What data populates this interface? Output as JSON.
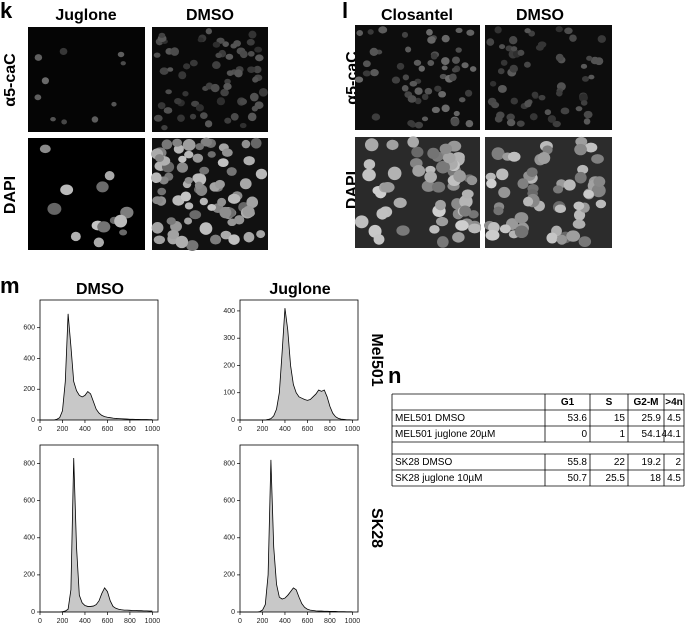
{
  "panels": {
    "k": {
      "label": "k",
      "columns": [
        "Juglone",
        "DMSO"
      ],
      "rows": [
        "α5-caC",
        "DAPI"
      ]
    },
    "l": {
      "label": "l",
      "columns": [
        "Closantel",
        "DMSO"
      ],
      "rows": [
        "α5-caC",
        "DAPI"
      ]
    },
    "m": {
      "label": "m",
      "columns": [
        "DMSO",
        "Juglone"
      ],
      "rows": [
        "Mel501",
        "SK28"
      ]
    },
    "n": {
      "label": "n",
      "table": {
        "header": [
          "G1",
          "S",
          "G2-M",
          ">4n"
        ],
        "groups": [
          [
            {
              "name": "MEL501 DMSO",
              "values": [
                53.6,
                15,
                25.9,
                4.5
              ]
            },
            {
              "name": "MEL501 juglone 20µM",
              "values": [
                0,
                1,
                54.1,
                44.1
              ]
            }
          ],
          [
            {
              "name": "SK28 DMSO",
              "values": [
                55.8,
                22,
                19.2,
                2
              ]
            },
            {
              "name": "SK28 juglone 10µM",
              "values": [
                50.7,
                25.5,
                18,
                4.5
              ]
            }
          ]
        ]
      }
    }
  },
  "chart_data": [
    {
      "type": "area",
      "color": "#c8c8c8",
      "x": [
        0,
        25,
        50,
        75,
        100,
        125,
        150,
        175,
        200,
        225,
        250,
        275,
        300,
        325,
        350,
        375,
        400,
        425,
        450,
        475,
        500,
        525,
        550,
        575,
        600,
        625,
        650,
        675,
        700,
        725,
        750,
        775,
        800,
        825,
        850,
        875,
        900,
        925,
        950,
        975,
        1000
      ],
      "values": [
        0,
        0,
        0,
        0,
        0,
        0,
        5,
        15,
        60,
        250,
        690,
        480,
        250,
        190,
        160,
        150,
        160,
        185,
        170,
        120,
        70,
        45,
        30,
        22,
        18,
        15,
        12,
        10,
        9,
        8,
        7,
        6,
        5,
        5,
        4,
        4,
        3,
        3,
        3,
        2,
        2
      ],
      "xlim": [
        0,
        1050
      ],
      "ylim": [
        0,
        780
      ],
      "xticks": [
        0,
        200,
        400,
        600,
        800,
        1000
      ],
      "yticks": [
        0,
        200,
        400,
        600
      ]
    },
    {
      "type": "area",
      "color": "#c8c8c8",
      "x": [
        0,
        25,
        50,
        75,
        100,
        125,
        150,
        175,
        200,
        225,
        250,
        275,
        300,
        325,
        350,
        375,
        400,
        425,
        450,
        475,
        500,
        525,
        550,
        575,
        600,
        625,
        650,
        675,
        700,
        725,
        750,
        775,
        800,
        825,
        850,
        875,
        900,
        925,
        950,
        975,
        1000
      ],
      "values": [
        0,
        0,
        0,
        0,
        0,
        0,
        0,
        0,
        0,
        0,
        2,
        5,
        15,
        40,
        100,
        250,
        410,
        330,
        200,
        130,
        100,
        85,
        80,
        75,
        72,
        75,
        85,
        95,
        110,
        105,
        110,
        85,
        50,
        25,
        12,
        6,
        3,
        2,
        1,
        1,
        0
      ],
      "xlim": [
        0,
        1050
      ],
      "ylim": [
        0,
        440
      ],
      "xticks": [
        0,
        200,
        400,
        600,
        800,
        1000
      ],
      "yticks": [
        0,
        100,
        200,
        300,
        400
      ]
    },
    {
      "type": "area",
      "color": "#c8c8c8",
      "x": [
        0,
        25,
        50,
        75,
        100,
        125,
        150,
        175,
        200,
        225,
        250,
        275,
        300,
        325,
        350,
        375,
        400,
        425,
        450,
        475,
        500,
        525,
        550,
        575,
        600,
        625,
        650,
        675,
        700,
        725,
        750,
        775,
        800,
        825,
        850,
        875,
        900,
        925,
        950,
        975,
        1000
      ],
      "values": [
        0,
        0,
        0,
        0,
        0,
        0,
        0,
        0,
        2,
        5,
        15,
        120,
        830,
        350,
        90,
        50,
        35,
        30,
        30,
        32,
        40,
        60,
        100,
        130,
        110,
        60,
        30,
        20,
        15,
        12,
        10,
        10,
        9,
        8,
        8,
        7,
        7,
        6,
        6,
        5,
        5
      ],
      "xlim": [
        0,
        1050
      ],
      "ylim": [
        0,
        900
      ],
      "xticks": [
        0,
        200,
        400,
        600,
        800,
        1000
      ],
      "yticks": [
        0,
        200,
        400,
        600,
        800
      ]
    },
    {
      "type": "area",
      "color": "#c8c8c8",
      "x": [
        0,
        25,
        50,
        75,
        100,
        125,
        150,
        175,
        200,
        225,
        250,
        275,
        300,
        325,
        350,
        375,
        400,
        425,
        450,
        475,
        500,
        525,
        550,
        575,
        600,
        625,
        650,
        675,
        700,
        725,
        750,
        775,
        800,
        825,
        850,
        875,
        900,
        925,
        950,
        975,
        1000
      ],
      "values": [
        0,
        0,
        0,
        0,
        0,
        0,
        0,
        2,
        10,
        40,
        200,
        820,
        350,
        150,
        80,
        70,
        75,
        90,
        110,
        130,
        120,
        80,
        45,
        25,
        15,
        10,
        8,
        6,
        5,
        5,
        4,
        4,
        3,
        3,
        3,
        2,
        2,
        2,
        1,
        1,
        1
      ],
      "xlim": [
        0,
        1050
      ],
      "ylim": [
        0,
        900
      ],
      "xticks": [
        0,
        200,
        400,
        600,
        800,
        1000
      ],
      "yticks": [
        0,
        200,
        400,
        600,
        800
      ]
    }
  ]
}
